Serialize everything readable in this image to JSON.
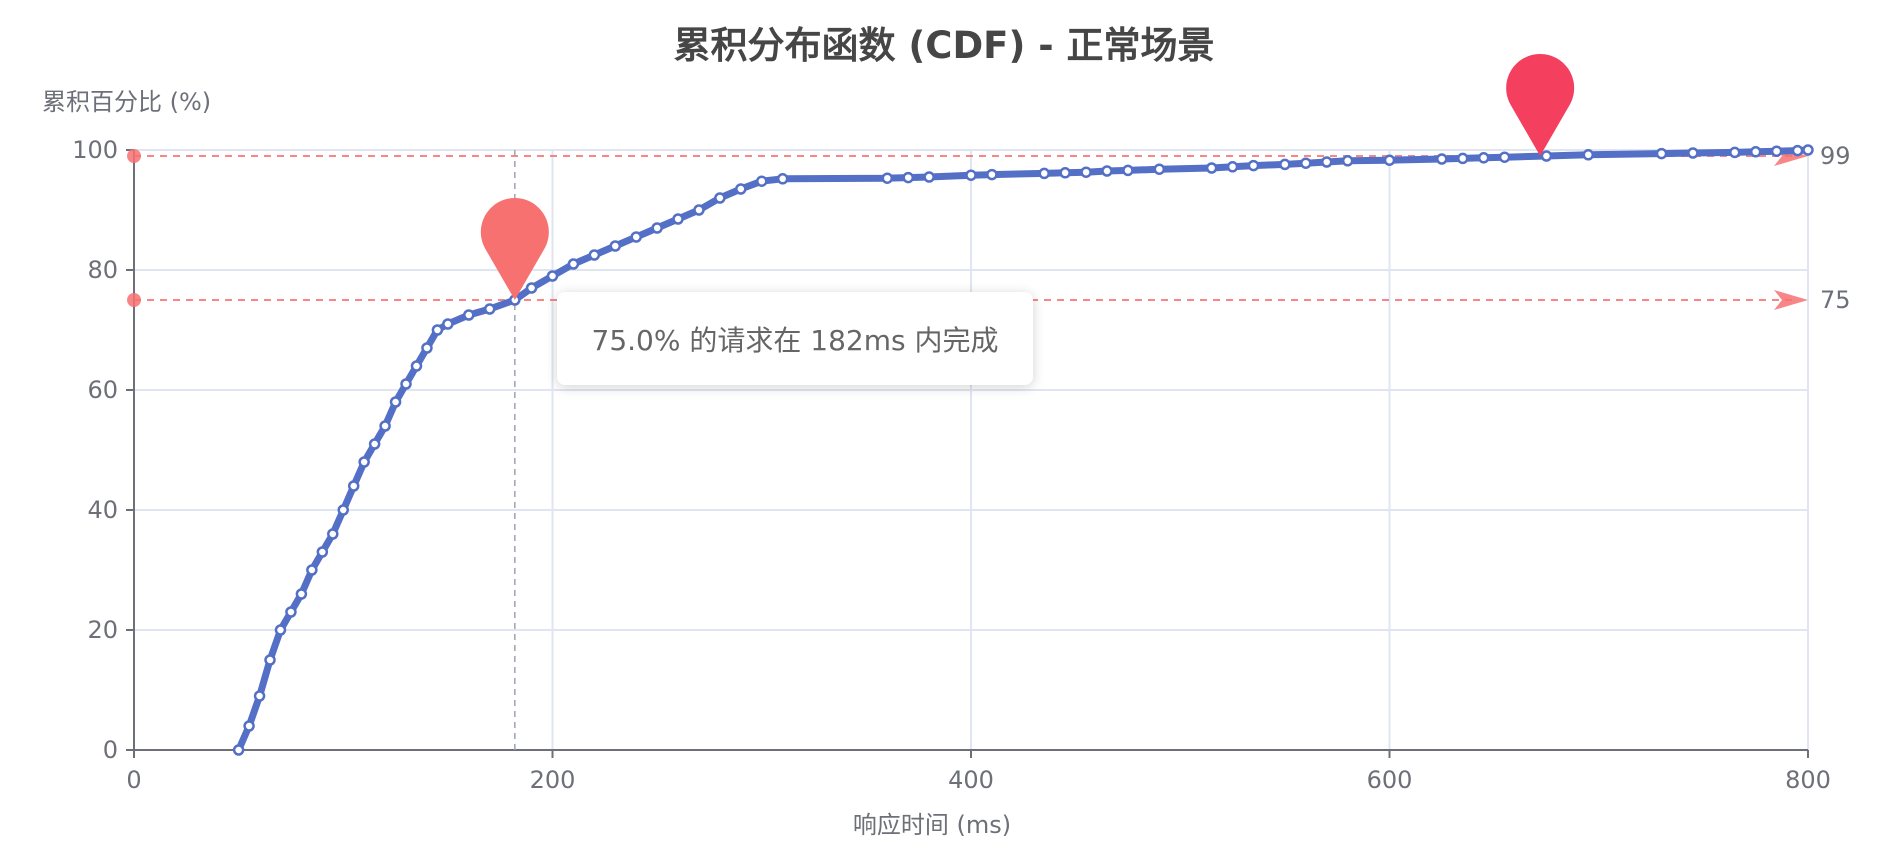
{
  "chart_data": {
    "type": "line",
    "title": "累积分布函数 (CDF) - 正常场景",
    "xlabel": "响应时间 (ms)",
    "ylabel": "累积百分比 (%)",
    "xlim": [
      0,
      800
    ],
    "ylim": [
      0,
      100
    ],
    "xticks": [
      "0",
      "200",
      "400",
      "600",
      "800"
    ],
    "yticks": [
      "0",
      "20",
      "40",
      "60",
      "80",
      "100"
    ],
    "grid": true,
    "series": [
      {
        "color": "#5470c6",
        "x": [
          50,
          55,
          60,
          65,
          70,
          75,
          80,
          85,
          90,
          95,
          100,
          105,
          110,
          115,
          120,
          125,
          130,
          135,
          140,
          145,
          150,
          160,
          170,
          182,
          190,
          200,
          210,
          220,
          230,
          240,
          250,
          260,
          270,
          280,
          290,
          300,
          310,
          360,
          370,
          380,
          400,
          410,
          435,
          445,
          455,
          465,
          475,
          490,
          515,
          525,
          535,
          550,
          560,
          570,
          580,
          600,
          625,
          635,
          645,
          655,
          675,
          695,
          730,
          745,
          765,
          775,
          785,
          795,
          800
        ],
        "y": [
          0,
          4,
          9,
          15,
          20,
          23,
          26,
          30,
          33,
          36,
          40,
          44,
          48,
          51,
          54,
          58,
          61,
          64,
          67,
          70,
          71,
          72.5,
          73.5,
          75,
          77,
          79,
          81,
          82.5,
          84,
          85.5,
          87,
          88.5,
          90,
          92,
          93.5,
          94.8,
          95.2,
          95.3,
          95.4,
          95.5,
          95.8,
          95.9,
          96.1,
          96.2,
          96.3,
          96.5,
          96.6,
          96.8,
          97,
          97.2,
          97.4,
          97.6,
          97.8,
          98,
          98.2,
          98.3,
          98.5,
          98.6,
          98.7,
          98.8,
          99,
          99.2,
          99.4,
          99.5,
          99.6,
          99.7,
          99.8,
          99.9,
          100
        ]
      }
    ],
    "marklines": [
      {
        "y": 99,
        "label": "99"
      },
      {
        "y": 75,
        "label": "75"
      }
    ],
    "markpoints": [
      {
        "x": 182,
        "y": 75,
        "color": "#f87171"
      },
      {
        "x": 672,
        "y": 99,
        "color": "#f43f5e"
      }
    ],
    "crosshair_x": 182
  },
  "tooltip": {
    "text": "75.0% 的请求在 182ms 内完成"
  }
}
